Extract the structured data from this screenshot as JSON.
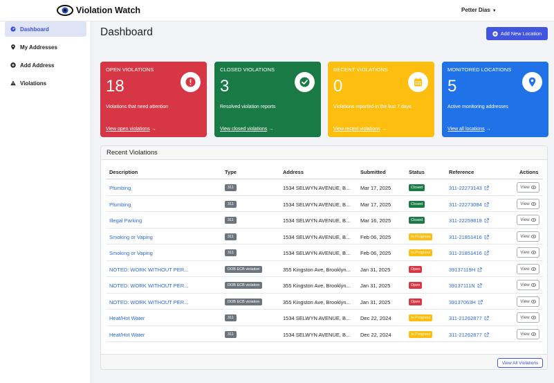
{
  "app": {
    "name": "Violation Watch"
  },
  "user": {
    "name": "Petter Dias"
  },
  "sidebar": {
    "items": [
      {
        "label": "Dashboard",
        "icon": "dashboard-icon"
      },
      {
        "label": "My Addresses",
        "icon": "map-pin-icon"
      },
      {
        "label": "Add Address",
        "icon": "plus-circle-icon"
      },
      {
        "label": "Violations",
        "icon": "warning-icon"
      }
    ]
  },
  "page": {
    "title": "Dashboard",
    "add_button": "Add New Location"
  },
  "cards": [
    {
      "title": "OPEN VIOLATIONS",
      "value": "18",
      "subtitle": "Violations that need attention",
      "link": "View open violations",
      "color": "#d73744",
      "icon": "alert-icon"
    },
    {
      "title": "CLOSED VIOLATIONS",
      "value": "3",
      "subtitle": "Resolved violation reports",
      "link": "View closed violations",
      "color": "#1a7a45",
      "icon": "check-icon"
    },
    {
      "title": "RECENT VIOLATIONS",
      "value": "0",
      "subtitle": "Violations reported in the last 7 days",
      "link": "View recent violations",
      "color": "#fdbe10",
      "icon": "calendar-icon"
    },
    {
      "title": "MONITORED LOCATIONS",
      "value": "5",
      "subtitle": "Active monitoring addresses",
      "link": "View all locations",
      "color": "#2072e8",
      "icon": "location-pin-icon"
    }
  ],
  "recent": {
    "title": "Recent Violations",
    "columns": [
      "Description",
      "Type",
      "Address",
      "Submitted",
      "Status",
      "Reference",
      "Actions"
    ],
    "view_label": "View",
    "view_all": "View All Violations",
    "status_colors": {
      "Closed": "#1a7a45",
      "In Progress": "#fdbe10",
      "Open": "#d73744"
    },
    "rows": [
      {
        "description": "Plumbing",
        "type": "311",
        "address": "1534 SELWYN AVENUE, B...",
        "submitted": "Mar 17, 2025",
        "status": "Closed",
        "reference": "311-22273143"
      },
      {
        "description": "Plumbing",
        "type": "311",
        "address": "1534 SELWYN AVENUE, B...",
        "submitted": "Mar 17, 2025",
        "status": "Closed",
        "reference": "311-22273084"
      },
      {
        "description": "Illegal Parking",
        "type": "311",
        "address": "1534 SELWYN AVENUE, B...",
        "submitted": "Mar 16, 2025",
        "status": "Closed",
        "reference": "311-22259818"
      },
      {
        "description": "Smoking or Vaping",
        "type": "311",
        "address": "1534 SELWYN AVENUE, B...",
        "submitted": "Feb 06, 2025",
        "status": "In Progress",
        "reference": "311-21851416"
      },
      {
        "description": "Smoking or Vaping",
        "type": "311",
        "address": "1534 SELWYN AVENUE, B...",
        "submitted": "Feb 06, 2025",
        "status": "In Progress",
        "reference": "311-21851416"
      },
      {
        "description": "NOTED: WORK WITHOUT PER...",
        "type": "DOB ECB violation",
        "address": "355 Kingston Ave, Brooklyn...",
        "submitted": "Jan 31, 2025",
        "status": "Open",
        "reference": "39137119H"
      },
      {
        "description": "NOTED: WORK WITHOUT PER...",
        "type": "DOB ECB violation",
        "address": "355 Kingston Ave, Brooklyn...",
        "submitted": "Jan 31, 2025",
        "status": "Open",
        "reference": "39137111N"
      },
      {
        "description": "NOTED: WORK WITHOUT PER...",
        "type": "DOB ECB violation",
        "address": "355 Kingston Ave, Brooklyn...",
        "submitted": "Jan 31, 2025",
        "status": "Open",
        "reference": "39137063H"
      },
      {
        "description": "Heat/Hot Water",
        "type": "311",
        "address": "1534 SELWYN AVENUE, B...",
        "submitted": "Dec 22, 2024",
        "status": "In Progress",
        "reference": "311-21262877"
      },
      {
        "description": "Heat/Hot Water",
        "type": "311",
        "address": "1534 SELWYN AVENUE, B...",
        "submitted": "Dec 22, 2024",
        "status": "In Progress",
        "reference": "311-21262877"
      }
    ]
  }
}
